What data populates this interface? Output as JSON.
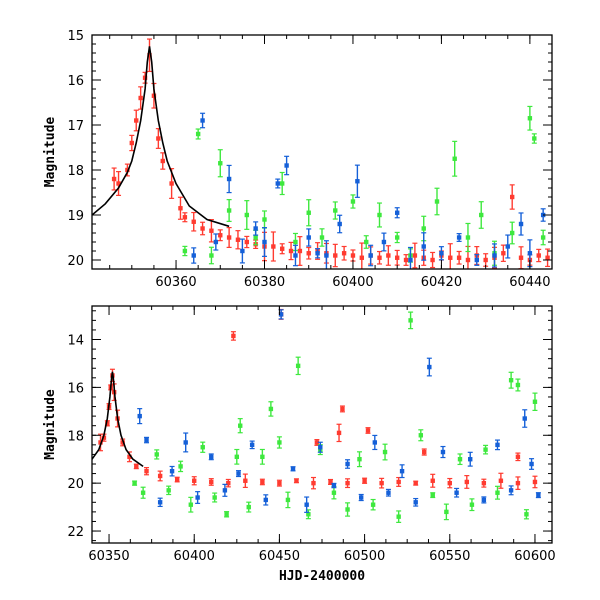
{
  "colors": {
    "red": "#ff3b30",
    "green": "#3ee83e",
    "blue": "#1560d8",
    "model": "#000000"
  },
  "chart_data": [
    {
      "type": "scatter",
      "title": "",
      "xlabel": "",
      "ylabel": "Magnitude",
      "xlim": [
        60341,
        60445
      ],
      "ylim": [
        20.2,
        15.0
      ],
      "y_inverted": true,
      "xticks": [
        60360,
        60380,
        60400,
        60420,
        60440
      ],
      "yticks": [
        15,
        16,
        17,
        18,
        19,
        20
      ],
      "model_curve": {
        "name": "",
        "points": [
          [
            60341,
            19.0
          ],
          [
            60344,
            18.75
          ],
          [
            60347,
            18.4
          ],
          [
            60349,
            18.05
          ],
          [
            60350,
            17.8
          ],
          [
            60351,
            17.4
          ],
          [
            60352,
            16.9
          ],
          [
            60353,
            16.2
          ],
          [
            60353.5,
            15.6
          ],
          [
            60354,
            15.25
          ],
          [
            60354.5,
            15.6
          ],
          [
            60355,
            16.2
          ],
          [
            60356,
            16.9
          ],
          [
            60357,
            17.4
          ],
          [
            60358,
            17.8
          ],
          [
            60360,
            18.3
          ],
          [
            60363,
            18.8
          ],
          [
            60367,
            19.1
          ],
          [
            60372,
            19.25
          ]
        ]
      },
      "series": [
        {
          "name": "",
          "color": "red",
          "points": [
            [
              60346,
              18.2
            ],
            [
              60347,
              18.3
            ],
            [
              60349,
              18.0
            ],
            [
              60350,
              17.4
            ],
            [
              60351,
              16.9
            ],
            [
              60352,
              16.4
            ],
            [
              60353,
              15.95
            ],
            [
              60354,
              15.45
            ],
            [
              60355,
              16.35
            ],
            [
              60356,
              17.3
            ],
            [
              60357,
              17.8
            ],
            [
              60359,
              18.3
            ],
            [
              60361,
              18.85
            ],
            [
              60362,
              19.05
            ],
            [
              60364,
              19.15
            ],
            [
              60366,
              19.3
            ],
            [
              60368,
              19.35
            ],
            [
              60370,
              19.45
            ],
            [
              60372,
              19.5
            ],
            [
              60374,
              19.55
            ],
            [
              60376,
              19.6
            ],
            [
              60378,
              19.65
            ],
            [
              60380,
              19.7
            ],
            [
              60382,
              19.7
            ],
            [
              60384,
              19.75
            ],
            [
              60386,
              19.8
            ],
            [
              60388,
              19.8
            ],
            [
              60390,
              19.85
            ],
            [
              60392,
              19.8
            ],
            [
              60394,
              19.85
            ],
            [
              60396,
              19.9
            ],
            [
              60398,
              19.85
            ],
            [
              60400,
              19.9
            ],
            [
              60402,
              19.95
            ],
            [
              60404,
              19.9
            ],
            [
              60406,
              19.95
            ],
            [
              60408,
              19.9
            ],
            [
              60410,
              19.95
            ],
            [
              60412,
              20.0
            ],
            [
              60414,
              19.9
            ],
            [
              60416,
              19.95
            ],
            [
              60418,
              20.0
            ],
            [
              60420,
              19.9
            ],
            [
              60422,
              19.95
            ],
            [
              60424,
              19.95
            ],
            [
              60426,
              20.0
            ],
            [
              60428,
              19.9
            ],
            [
              60430,
              20.0
            ],
            [
              60432,
              19.95
            ],
            [
              60434,
              19.85
            ],
            [
              60436,
              18.6
            ],
            [
              60438,
              19.95
            ],
            [
              60440,
              20.0
            ],
            [
              60442,
              19.9
            ],
            [
              60444,
              19.95
            ]
          ]
        },
        {
          "name": "",
          "color": "green",
          "points": [
            [
              60362,
              19.8
            ],
            [
              60365,
              17.2
            ],
            [
              60368,
              19.9
            ],
            [
              60370,
              17.85
            ],
            [
              60372,
              18.9
            ],
            [
              60376,
              19.0
            ],
            [
              60378,
              19.5
            ],
            [
              60380,
              19.1
            ],
            [
              60384,
              18.3
            ],
            [
              60387,
              19.6
            ],
            [
              60390,
              18.95
            ],
            [
              60393,
              19.5
            ],
            [
              60396,
              18.9
            ],
            [
              60400,
              18.7
            ],
            [
              60403,
              19.6
            ],
            [
              60406,
              19.0
            ],
            [
              60410,
              19.5
            ],
            [
              60413,
              19.9
            ],
            [
              60416,
              19.3
            ],
            [
              60419,
              18.7
            ],
            [
              60423,
              17.75
            ],
            [
              60426,
              19.5
            ],
            [
              60429,
              19.0
            ],
            [
              60432,
              19.85
            ],
            [
              60436,
              19.4
            ],
            [
              60440,
              16.85
            ],
            [
              60441,
              17.3
            ],
            [
              60443,
              19.5
            ]
          ]
        },
        {
          "name": "",
          "color": "blue",
          "points": [
            [
              60364,
              19.9
            ],
            [
              60366,
              16.9
            ],
            [
              60369,
              19.6
            ],
            [
              60372,
              18.2
            ],
            [
              60375,
              19.8
            ],
            [
              60378,
              19.3
            ],
            [
              60380,
              19.6
            ],
            [
              60383,
              18.3
            ],
            [
              60385,
              17.9
            ],
            [
              60387,
              19.9
            ],
            [
              60390,
              19.5
            ],
            [
              60392,
              19.85
            ],
            [
              60394,
              19.9
            ],
            [
              60397,
              19.2
            ],
            [
              60401,
              18.25
            ],
            [
              60404,
              19.9
            ],
            [
              60407,
              19.6
            ],
            [
              60410,
              18.95
            ],
            [
              60413,
              20.0
            ],
            [
              60416,
              19.7
            ],
            [
              60420,
              19.85
            ],
            [
              60424,
              19.5
            ],
            [
              60428,
              20.0
            ],
            [
              60432,
              19.9
            ],
            [
              60435,
              19.7
            ],
            [
              60438,
              19.2
            ],
            [
              60440,
              19.85
            ],
            [
              60443,
              19.0
            ]
          ]
        }
      ]
    },
    {
      "type": "scatter",
      "title": "",
      "xlabel": "HJD-2400000",
      "ylabel": "Magnitude",
      "xlim": [
        60340,
        60610
      ],
      "ylim": [
        22.5,
        12.6
      ],
      "y_inverted": true,
      "xticks": [
        60350,
        60400,
        60450,
        60500,
        60550,
        60600
      ],
      "yticks": [
        14,
        16,
        18,
        20,
        22
      ],
      "model_curve": {
        "name": "",
        "points": [
          [
            60340,
            19.0
          ],
          [
            60344,
            18.6
          ],
          [
            60347,
            18.0
          ],
          [
            60349,
            17.3
          ],
          [
            60350.5,
            16.4
          ],
          [
            60351.5,
            15.6
          ],
          [
            60352,
            15.35
          ],
          [
            60352.5,
            15.6
          ],
          [
            60353.5,
            16.4
          ],
          [
            60355,
            17.3
          ],
          [
            60357,
            18.0
          ],
          [
            60360,
            18.6
          ],
          [
            60364,
            19.0
          ],
          [
            60370,
            19.3
          ]
        ]
      },
      "series": [
        {
          "name": "",
          "color": "red",
          "points": [
            [
              60345,
              18.3
            ],
            [
              60347,
              18.1
            ],
            [
              60349,
              17.5
            ],
            [
              60350,
              16.8
            ],
            [
              60351,
              16.0
            ],
            [
              60352,
              15.5
            ],
            [
              60353,
              16.2
            ],
            [
              60355,
              17.3
            ],
            [
              60358,
              18.3
            ],
            [
              60362,
              18.9
            ],
            [
              60366,
              19.3
            ],
            [
              60372,
              19.5
            ],
            [
              60380,
              19.7
            ],
            [
              60390,
              19.85
            ],
            [
              60400,
              19.9
            ],
            [
              60410,
              19.95
            ],
            [
              60420,
              20.0
            ],
            [
              60430,
              19.9
            ],
            [
              60440,
              19.95
            ],
            [
              60450,
              20.0
            ],
            [
              60460,
              19.9
            ],
            [
              60470,
              20.0
            ],
            [
              60480,
              19.95
            ],
            [
              60490,
              20.0
            ],
            [
              60500,
              19.9
            ],
            [
              60510,
              20.0
            ],
            [
              60520,
              19.95
            ],
            [
              60530,
              20.0
            ],
            [
              60540,
              19.9
            ],
            [
              60550,
              20.0
            ],
            [
              60560,
              19.95
            ],
            [
              60570,
              20.0
            ],
            [
              60580,
              19.9
            ],
            [
              60590,
              20.0
            ],
            [
              60600,
              19.95
            ],
            [
              60423,
              13.85
            ],
            [
              60451,
              12.95
            ],
            [
              60472,
              18.3
            ],
            [
              60485,
              17.9
            ],
            [
              60487,
              16.9
            ],
            [
              60502,
              17.8
            ],
            [
              60535,
              18.7
            ],
            [
              60590,
              18.9
            ]
          ]
        },
        {
          "name": "",
          "color": "green",
          "points": [
            [
              60365,
              20.0
            ],
            [
              60370,
              20.4
            ],
            [
              60378,
              18.8
            ],
            [
              60385,
              20.3
            ],
            [
              60392,
              19.3
            ],
            [
              60398,
              20.9
            ],
            [
              60405,
              18.5
            ],
            [
              60412,
              20.6
            ],
            [
              60419,
              21.3
            ],
            [
              60425,
              18.9
            ],
            [
              60427,
              17.6
            ],
            [
              60432,
              21.0
            ],
            [
              60440,
              18.9
            ],
            [
              60445,
              16.9
            ],
            [
              60450,
              18.3
            ],
            [
              60455,
              20.7
            ],
            [
              60461,
              15.1
            ],
            [
              60467,
              21.3
            ],
            [
              60474,
              18.6
            ],
            [
              60482,
              20.4
            ],
            [
              60490,
              21.1
            ],
            [
              60497,
              19.0
            ],
            [
              60505,
              20.9
            ],
            [
              60512,
              18.7
            ],
            [
              60520,
              21.4
            ],
            [
              60527,
              13.2
            ],
            [
              60533,
              18.0
            ],
            [
              60540,
              20.5
            ],
            [
              60548,
              21.2
            ],
            [
              60556,
              19.0
            ],
            [
              60563,
              20.9
            ],
            [
              60571,
              18.6
            ],
            [
              60578,
              20.4
            ],
            [
              60586,
              15.7
            ],
            [
              60590,
              15.9
            ],
            [
              60595,
              21.3
            ],
            [
              60600,
              16.6
            ]
          ]
        },
        {
          "name": "",
          "color": "blue",
          "points": [
            [
              60368,
              17.2
            ],
            [
              60372,
              18.2
            ],
            [
              60380,
              20.8
            ],
            [
              60387,
              19.5
            ],
            [
              60395,
              18.3
            ],
            [
              60402,
              20.6
            ],
            [
              60410,
              18.9
            ],
            [
              60418,
              20.3
            ],
            [
              60426,
              19.6
            ],
            [
              60434,
              18.4
            ],
            [
              60442,
              20.7
            ],
            [
              60451,
              12.95
            ],
            [
              60458,
              19.4
            ],
            [
              60466,
              20.9
            ],
            [
              60474,
              18.5
            ],
            [
              60482,
              20.1
            ],
            [
              60490,
              19.2
            ],
            [
              60498,
              20.6
            ],
            [
              60506,
              18.3
            ],
            [
              60514,
              20.4
            ],
            [
              60522,
              19.5
            ],
            [
              60530,
              20.8
            ],
            [
              60538,
              15.15
            ],
            [
              60546,
              18.7
            ],
            [
              60554,
              20.4
            ],
            [
              60562,
              19.0
            ],
            [
              60570,
              20.7
            ],
            [
              60578,
              18.4
            ],
            [
              60586,
              20.3
            ],
            [
              60594,
              17.3
            ],
            [
              60598,
              19.2
            ],
            [
              60602,
              20.5
            ]
          ]
        }
      ]
    }
  ]
}
